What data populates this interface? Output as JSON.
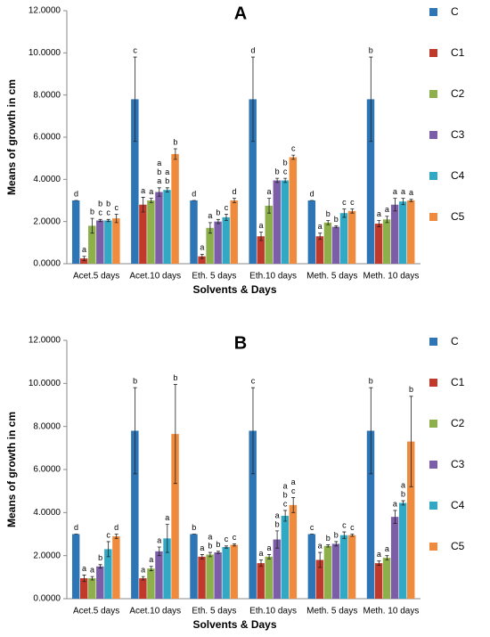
{
  "chart_data": [
    {
      "type": "bar",
      "title": "A",
      "x_label": "Solvents & Days",
      "y_label": "Means of growth in cm",
      "categories": [
        "Acet.5 days",
        "Acet.10 days",
        "Eth. 5 days",
        "Eth.10 days",
        "Meth. 5 days",
        "Meth. 10 days"
      ],
      "ylim": [
        0,
        12
      ],
      "yticks": [
        {
          "value": 0,
          "label": "0.0000"
        },
        {
          "value": 2,
          "label": "2.0000"
        },
        {
          "value": 4,
          "label": "4.0000"
        },
        {
          "value": 6,
          "label": "6.0000"
        },
        {
          "value": 8,
          "label": "8.0000"
        },
        {
          "value": 10,
          "label": "10.0000"
        },
        {
          "value": 12,
          "label": "12.0000"
        }
      ],
      "legend": "right",
      "series": [
        {
          "name": "C",
          "color": "#2e75b6",
          "values": [
            3.0,
            7.8,
            3.0,
            7.8,
            3.0,
            7.8
          ],
          "errors": [
            0,
            2.0,
            0,
            2.0,
            0,
            2.0
          ],
          "letters": [
            [
              "d"
            ],
            [
              "c"
            ],
            [
              "d"
            ],
            [
              "d"
            ],
            [
              "d"
            ],
            [
              "b"
            ]
          ]
        },
        {
          "name": "C1",
          "color": "#c0392b",
          "values": [
            0.25,
            2.8,
            0.35,
            1.3,
            1.3,
            1.9
          ],
          "errors": [
            0.1,
            0.35,
            0.1,
            0.2,
            0.15,
            0.15
          ],
          "letters": [
            [
              "a"
            ],
            [
              "a"
            ],
            [
              "a"
            ],
            [
              "a"
            ],
            [
              "a"
            ],
            [
              "a"
            ]
          ]
        },
        {
          "name": "C2",
          "color": "#8db04a",
          "values": [
            1.8,
            3.0,
            1.7,
            2.75,
            1.95,
            2.1
          ],
          "errors": [
            0.35,
            0.1,
            0.25,
            0.35,
            0.1,
            0.15
          ],
          "letters": [
            [
              "b"
            ],
            [
              "a"
            ],
            [
              "a"
            ],
            [
              "a"
            ],
            [
              "b"
            ],
            [
              "a"
            ]
          ]
        },
        {
          "name": "C3",
          "color": "#7b5ea7",
          "values": [
            2.05,
            3.4,
            2.0,
            3.95,
            1.75,
            2.8
          ],
          "errors": [
            0.05,
            0.2,
            0.1,
            0.1,
            0.05,
            0.3
          ],
          "letters": [
            [
              "b",
              "c"
            ],
            [
              "a",
              "b",
              "a"
            ],
            [
              "b"
            ],
            [
              "b"
            ],
            [
              "b"
            ],
            [
              "a"
            ]
          ]
        },
        {
          "name": "C4",
          "color": "#31a9c4",
          "values": [
            2.05,
            3.5,
            2.2,
            3.95,
            2.4,
            2.95
          ],
          "errors": [
            0.05,
            0.1,
            0.15,
            0.1,
            0.2,
            0.15
          ],
          "letters": [
            [
              "b",
              "c"
            ],
            [
              "a",
              "b"
            ],
            [
              "c"
            ],
            [
              "b",
              "c"
            ],
            [
              "c"
            ],
            [
              "a"
            ]
          ]
        },
        {
          "name": "C5",
          "color": "#f08a3c",
          "values": [
            2.15,
            5.2,
            3.0,
            5.05,
            2.5,
            3.0
          ],
          "errors": [
            0.2,
            0.25,
            0.1,
            0.1,
            0.1,
            0.05
          ],
          "letters": [
            [
              "c"
            ],
            [
              "b"
            ],
            [
              "d"
            ],
            [
              "c"
            ],
            [
              "c"
            ],
            [
              "a"
            ]
          ]
        }
      ]
    },
    {
      "type": "bar",
      "title": "B",
      "x_label": "Solvents & Days",
      "y_label": "Means of growth in cm",
      "categories": [
        "Acet.5 days",
        "Acet.10 days",
        "Eth. 5 days",
        "Eth.10 days",
        "Meth. 5 days",
        "Meth. 10 days"
      ],
      "ylim": [
        0,
        12
      ],
      "yticks": [
        {
          "value": 0,
          "label": "0.0000"
        },
        {
          "value": 2,
          "label": "2.0000"
        },
        {
          "value": 4,
          "label": "4.0000"
        },
        {
          "value": 6,
          "label": "6.0000"
        },
        {
          "value": 8,
          "label": "8.0000"
        },
        {
          "value": 10,
          "label": "10.0000"
        },
        {
          "value": 12,
          "label": "12.0000"
        }
      ],
      "legend": "right",
      "series": [
        {
          "name": "C",
          "color": "#2e75b6",
          "values": [
            3.0,
            7.8,
            3.0,
            7.8,
            3.0,
            7.8
          ],
          "errors": [
            0,
            2.0,
            0,
            2.0,
            0,
            2.0
          ],
          "letters": [
            [
              "d"
            ],
            [
              "b"
            ],
            [
              "b"
            ],
            [
              "c"
            ],
            [
              "c"
            ],
            [
              "b"
            ]
          ]
        },
        {
          "name": "C1",
          "color": "#c0392b",
          "values": [
            0.95,
            0.95,
            1.95,
            1.65,
            1.8,
            1.65
          ],
          "errors": [
            0.15,
            0.08,
            0.1,
            0.15,
            0.35,
            0.1
          ],
          "letters": [
            [
              "a"
            ],
            [
              "a"
            ],
            [
              "a"
            ],
            [
              "a"
            ],
            [
              "a"
            ],
            [
              "a"
            ]
          ]
        },
        {
          "name": "C2",
          "color": "#8db04a",
          "values": [
            0.95,
            1.4,
            2.05,
            1.95,
            2.45,
            1.9
          ],
          "errors": [
            0.08,
            0.1,
            0.1,
            0.1,
            0.05,
            0.1
          ],
          "letters": [
            [
              "a"
            ],
            [
              "a"
            ],
            [
              "a",
              "b"
            ],
            [
              "a"
            ],
            [
              "b"
            ],
            [
              "a"
            ]
          ]
        },
        {
          "name": "C3",
          "color": "#7b5ea7",
          "values": [
            1.5,
            2.2,
            2.15,
            2.75,
            2.55,
            3.8
          ],
          "errors": [
            0.08,
            0.2,
            0.05,
            0.4,
            0.1,
            0.3
          ],
          "letters": [
            [
              "b"
            ],
            [
              "a"
            ],
            [
              "b"
            ],
            [
              "a",
              "b"
            ],
            [
              "b"
            ],
            [
              "a"
            ]
          ]
        },
        {
          "name": "C4",
          "color": "#31a9c4",
          "values": [
            2.3,
            2.8,
            2.4,
            3.85,
            2.95,
            4.45
          ],
          "errors": [
            0.35,
            0.65,
            0.05,
            0.25,
            0.15,
            0.1
          ],
          "letters": [
            [
              "c"
            ],
            [
              "a"
            ],
            [
              "c"
            ],
            [
              "a",
              "b",
              "c"
            ],
            [
              "c"
            ],
            [
              "a",
              "b"
            ]
          ]
        },
        {
          "name": "C5",
          "color": "#f08a3c",
          "values": [
            2.9,
            7.65,
            2.5,
            4.35,
            2.95,
            7.3
          ],
          "errors": [
            0.1,
            2.3,
            0.05,
            0.35,
            0.05,
            2.1
          ],
          "letters": [
            [
              "d"
            ],
            [
              "b"
            ],
            [
              "c"
            ],
            [
              "a",
              "c"
            ],
            [
              "c"
            ],
            [
              "b"
            ]
          ]
        }
      ]
    }
  ]
}
